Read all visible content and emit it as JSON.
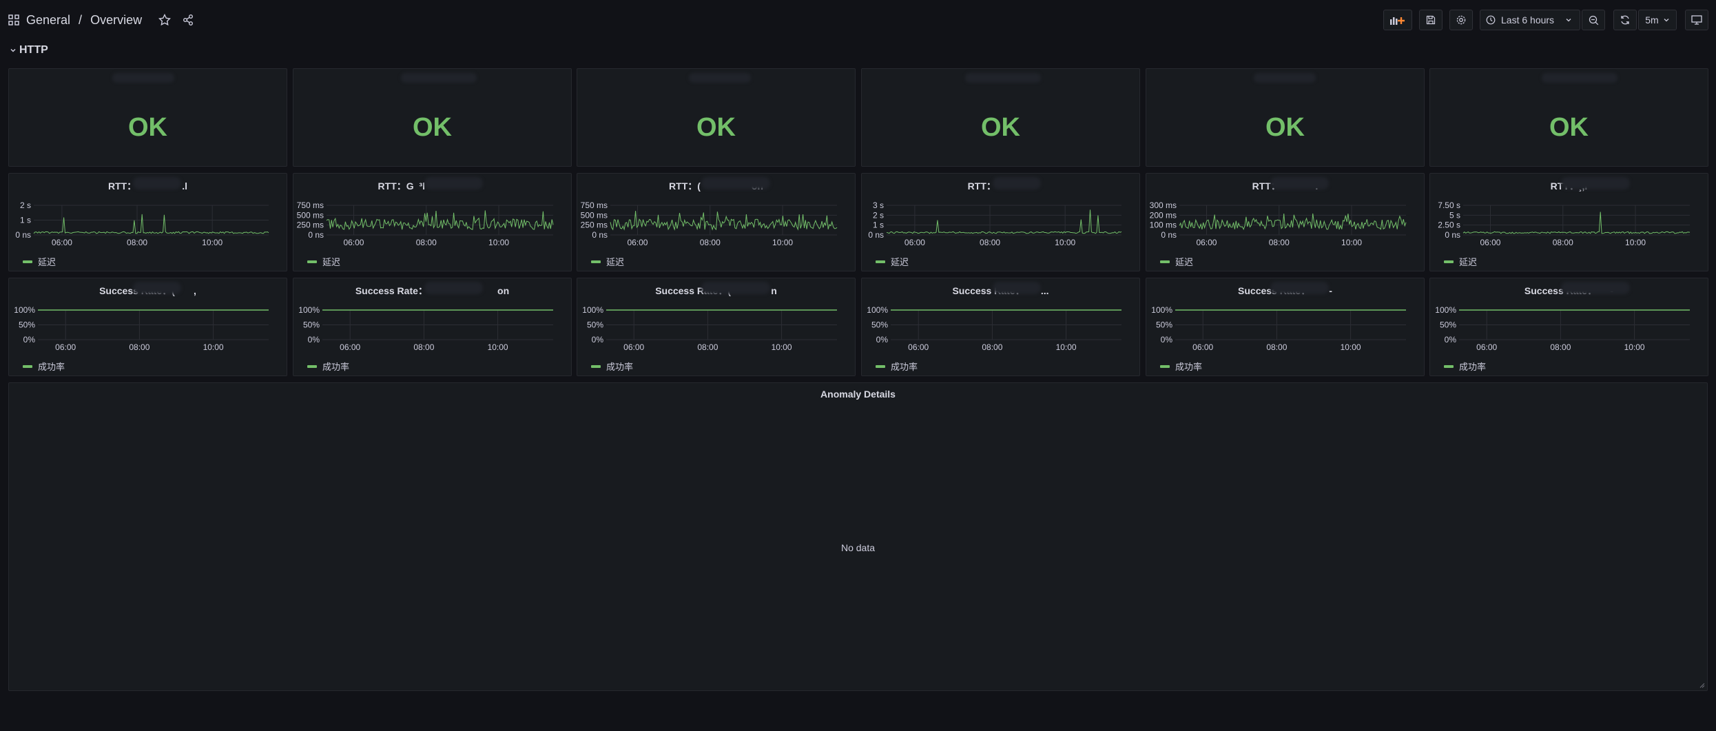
{
  "breadcrumb": {
    "folder": "General",
    "separator": "/",
    "dashboard": "Overview"
  },
  "toolbar": {
    "time_range": "Last 6 hours",
    "refresh_interval": "5m"
  },
  "colors": {
    "ok": "#73bf69",
    "series": "#73bf69",
    "background": "#111217",
    "panel": "#181b1f"
  },
  "row": {
    "title": "HTTP"
  },
  "status_panels": [
    {
      "value": "OK"
    },
    {
      "value": "OK"
    },
    {
      "value": "OK"
    },
    {
      "value": "OK"
    },
    {
      "value": "OK"
    },
    {
      "value": "OK"
    }
  ],
  "rtt_panels": [
    {
      "title": "RTT：                 .l",
      "yticks": [
        "2 s",
        "1 s",
        "0 ns"
      ],
      "xticks": [
        "06:00",
        "08:00",
        "10:00"
      ],
      "legend": "延迟"
    },
    {
      "title": "RTT：G  ³l                       ",
      "yticks": [
        "750 ms",
        "500 ms",
        "250 ms",
        "0 ns"
      ],
      "xticks": [
        "06:00",
        "08:00",
        "10:00"
      ],
      "legend": "延迟"
    },
    {
      "title": "RTT：(                   on",
      "yticks": [
        "750 ms",
        "500 ms",
        "250 ms",
        "0 ns"
      ],
      "xticks": [
        "06:00",
        "08:00",
        "10:00"
      ],
      "legend": "延迟"
    },
    {
      "title": "RTT：              ",
      "yticks": [
        "3 s",
        "2 s",
        "1 s",
        "0 ns"
      ],
      "xticks": [
        "06:00",
        "08:00",
        "10:00"
      ],
      "legend": "延迟"
    },
    {
      "title": "RTT：             .",
      "yticks": [
        "300 ms",
        "200 ms",
        "100 ms",
        "0 ns"
      ],
      "xticks": [
        "06:00",
        "08:00",
        "10:00"
      ],
      "legend": "延迟"
    },
    {
      "title": "RTT：¸,l",
      "yticks": [
        "7.50 s",
        "5 s",
        "2.50 s",
        "0 ns"
      ],
      "xticks": [
        "06:00",
        "08:00",
        "10:00"
      ],
      "legend": "延迟"
    }
  ],
  "success_panels": [
    {
      "title": "Success Rate：(       ,",
      "yticks": [
        "100%",
        "50%",
        "0%"
      ],
      "xticks": [
        "06:00",
        "08:00",
        "10:00"
      ],
      "legend": "成功率"
    },
    {
      "title": "Success Rate：                          on",
      "yticks": [
        "100%",
        "50%",
        "0%"
      ],
      "xticks": [
        "06:00",
        "08:00",
        "10:00"
      ],
      "legend": "成功率"
    },
    {
      "title": "Success Rate：(               n",
      "yticks": [
        "100%",
        "50%",
        "0%"
      ],
      "xticks": [
        "06:00",
        "08:00",
        "10:00"
      ],
      "legend": "成功率"
    },
    {
      "title": "Success Rate：      ...",
      "yticks": [
        "100%",
        "50%",
        "0%"
      ],
      "xticks": [
        "06:00",
        "08:00",
        "10:00"
      ],
      "legend": "成功率"
    },
    {
      "title": "Success Rate：       -",
      "yticks": [
        "100%",
        "50%",
        "0%"
      ],
      "xticks": [
        "06:00",
        "08:00",
        "10:00"
      ],
      "legend": "成功率"
    },
    {
      "title": "Success Rate：     -",
      "yticks": [
        "100%",
        "50%",
        "0%"
      ],
      "xticks": [
        "06:00",
        "08:00",
        "10:00"
      ],
      "legend": "成功率"
    }
  ],
  "anomaly_panel": {
    "title": "Anomaly Details",
    "empty_text": "No data"
  }
}
